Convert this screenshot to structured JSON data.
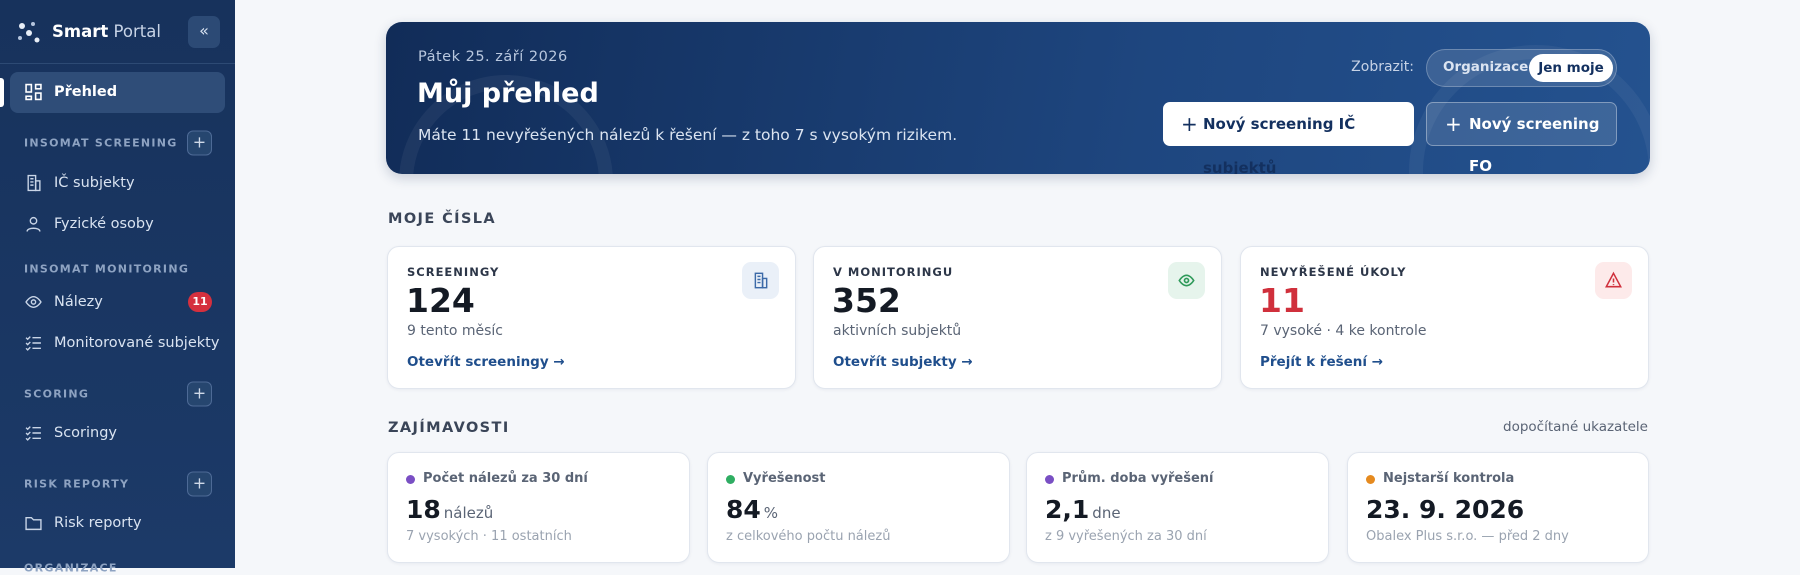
{
  "sidebar": {
    "brand": {
      "name": "Smart",
      "suffix": "Portal"
    },
    "items": [
      {
        "label": "Přehled"
      },
      {
        "section": "INSOMAT SCREENING"
      },
      {
        "label": "IČ subjekty"
      },
      {
        "label": "Fyzické osoby"
      },
      {
        "section": "INSOMAT MONITORING"
      },
      {
        "label": "Nálezy",
        "badge": 11
      },
      {
        "label": "Monitorované subjekty"
      },
      {
        "section": "SCORING"
      },
      {
        "label": "Scoringy"
      },
      {
        "section": "RISK REPORTY"
      },
      {
        "label": "Risk reporty"
      },
      {
        "section": "ORGANIZACE"
      }
    ]
  },
  "banner": {
    "date": "Pátek 25. září 2026",
    "title": "Můj přehled",
    "text": "Máte 11 nevyřešených nálezů k řešení — z toho 7 s vysokým rizikem.",
    "view_label": "Zobrazit:",
    "view_options": [
      "Organizace",
      "Jen moje"
    ],
    "buttons": [
      "Nový screening IČ subjektů",
      "Nový screening FO"
    ]
  },
  "numbers": {
    "title": "MOJE ČÍSLA",
    "cards": [
      {
        "label": "SCREENINGY",
        "value": 124,
        "sub": "9 tento měsíc",
        "link": "Otevřít screeningy"
      },
      {
        "label": "V MONITORINGU",
        "value": 352,
        "sub": "aktivních subjektů",
        "link": "Otevřít subjekty"
      },
      {
        "label": "NEVYŘEŠENÉ ÚKOLY",
        "value": 11,
        "sub": "7 vysoké · 4 ke kontrole",
        "link": "Přejít k řešení"
      }
    ]
  },
  "insights": {
    "title": "ZAJÍMAVOSTI",
    "note": "dopočítané ukazatele",
    "cards": [
      {
        "label": "Počet nálezů za 30 dní",
        "value": 18,
        "unit": "nálezů",
        "sub": "7 vysokých · 11 ostatních"
      },
      {
        "label": "Vyřešenost",
        "value": 84,
        "unit": "%",
        "sub": "z celkového počtu nálezů"
      },
      {
        "label": "Prům. doba vyřešení",
        "value": "2,1",
        "unit": "dne",
        "sub": "z 9 vyřešených za 30 dní"
      },
      {
        "label": "Nejstarší kontrola",
        "value": "23. 9. 2026",
        "sub": "Obalex Plus s.r.o. — před 2 dny"
      }
    ]
  }
}
